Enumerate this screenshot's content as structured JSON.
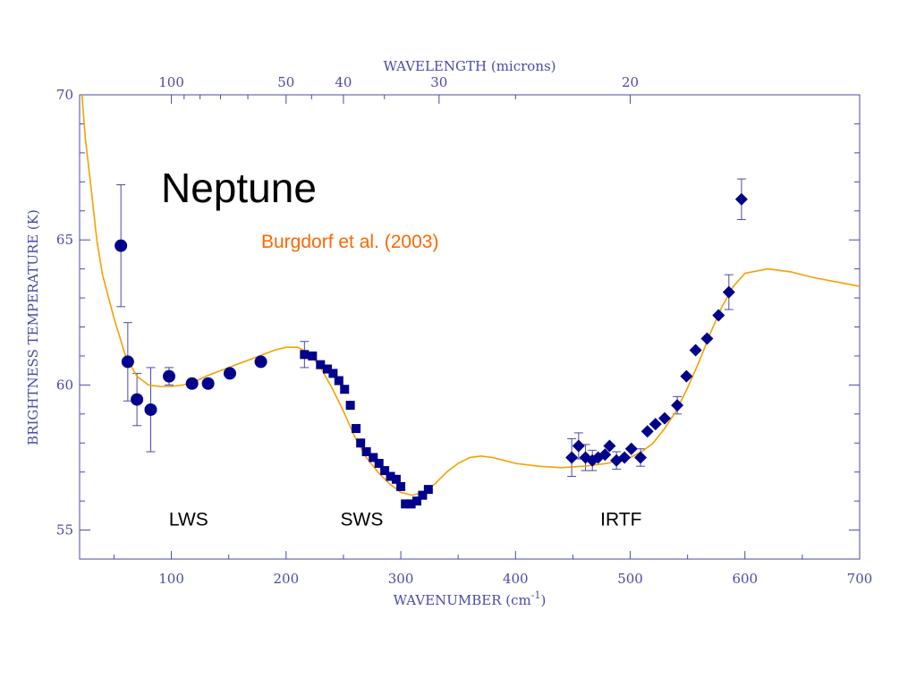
{
  "chart_data": {
    "type": "scatter",
    "title": "Neptune",
    "xlabel": "WAVENUMBER (cm",
    "xlabel_sup": "-1",
    "xlabel_tail": ")",
    "ylabel": "BRIGHTNESS TEMPERATURE (K)",
    "top_xlabel": "WAVELENGTH (microns)",
    "xlim": [
      20,
      700
    ],
    "ylim": [
      54,
      70
    ],
    "x_ticks": [
      100,
      200,
      300,
      400,
      500,
      600,
      700
    ],
    "y_ticks": [
      55,
      60,
      65,
      70
    ],
    "top_ticks": [
      {
        "label": "100",
        "wavelength": 100
      },
      {
        "label": "50",
        "wavelength": 50
      },
      {
        "label": "40",
        "wavelength": 40
      },
      {
        "label": "30",
        "wavelength": 30
      },
      {
        "label": "20",
        "wavelength": 20
      }
    ],
    "colors": {
      "axis": "#4a4aa8",
      "points": "#00008b",
      "model": "#f5a000",
      "model_label": "#ff6600",
      "text": "#000000"
    },
    "model": {
      "name": "Burgdorf et al. (2003)",
      "x": [
        22,
        25,
        30,
        35,
        40,
        50,
        60,
        70,
        80,
        90,
        100,
        110,
        120,
        130,
        140,
        150,
        160,
        170,
        180,
        190,
        200,
        210,
        220,
        230,
        240,
        250,
        260,
        270,
        280,
        290,
        300,
        310,
        320,
        330,
        340,
        350,
        360,
        370,
        380,
        390,
        400,
        420,
        440,
        460,
        480,
        500,
        510,
        520,
        530,
        540,
        550,
        560,
        570,
        580,
        590,
        600,
        620,
        640,
        660,
        680,
        700
      ],
      "y": [
        70.0,
        68.5,
        66.8,
        65.0,
        63.8,
        62.3,
        61.0,
        60.3,
        60.0,
        59.95,
        59.95,
        60.0,
        60.1,
        60.3,
        60.45,
        60.6,
        60.75,
        60.9,
        61.05,
        61.2,
        61.3,
        61.3,
        61.1,
        60.6,
        59.9,
        59.1,
        58.2,
        57.5,
        57.0,
        56.6,
        56.3,
        56.2,
        56.3,
        56.6,
        57.0,
        57.3,
        57.5,
        57.55,
        57.5,
        57.4,
        57.3,
        57.2,
        57.15,
        57.2,
        57.3,
        57.5,
        57.7,
        58.0,
        58.5,
        59.1,
        59.9,
        60.8,
        61.8,
        62.7,
        63.4,
        63.85,
        64.0,
        63.9,
        63.7,
        63.55,
        63.4
      ]
    },
    "series": [
      {
        "name": "LWS",
        "marker": "circle",
        "points": [
          {
            "x": 56,
            "y": 64.8,
            "err": 2.1
          },
          {
            "x": 62,
            "y": 60.8,
            "err": 1.35
          },
          {
            "x": 70,
            "y": 59.5,
            "err": 0.9
          },
          {
            "x": 82,
            "y": 59.15,
            "err": 1.45
          },
          {
            "x": 98,
            "y": 60.3,
            "err": 0.3
          },
          {
            "x": 118,
            "y": 60.05,
            "err": 0
          },
          {
            "x": 132,
            "y": 60.05,
            "err": 0
          },
          {
            "x": 151,
            "y": 60.4,
            "err": 0
          },
          {
            "x": 178,
            "y": 60.8,
            "err": 0
          }
        ]
      },
      {
        "name": "SWS",
        "marker": "square",
        "points": [
          {
            "x": 216,
            "y": 61.05,
            "err": 0.45
          },
          {
            "x": 223,
            "y": 61.0,
            "err": 0
          },
          {
            "x": 230,
            "y": 60.7,
            "err": 0
          },
          {
            "x": 236,
            "y": 60.55,
            "err": 0
          },
          {
            "x": 241,
            "y": 60.4,
            "err": 0
          },
          {
            "x": 246,
            "y": 60.15,
            "err": 0
          },
          {
            "x": 251,
            "y": 59.85,
            "err": 0
          },
          {
            "x": 256,
            "y": 59.3,
            "err": 0
          },
          {
            "x": 261,
            "y": 58.5,
            "err": 0
          },
          {
            "x": 265,
            "y": 58.0,
            "err": 0
          },
          {
            "x": 270,
            "y": 57.7,
            "err": 0
          },
          {
            "x": 276,
            "y": 57.5,
            "err": 0
          },
          {
            "x": 281,
            "y": 57.3,
            "err": 0
          },
          {
            "x": 286,
            "y": 57.05,
            "err": 0
          },
          {
            "x": 291,
            "y": 56.85,
            "err": 0
          },
          {
            "x": 296,
            "y": 56.75,
            "err": 0
          },
          {
            "x": 300,
            "y": 56.5,
            "err": 0
          },
          {
            "x": 304,
            "y": 55.9,
            "err": 0
          },
          {
            "x": 309,
            "y": 55.9,
            "err": 0
          },
          {
            "x": 314,
            "y": 56.0,
            "err": 0
          },
          {
            "x": 319,
            "y": 56.2,
            "err": 0
          },
          {
            "x": 324,
            "y": 56.4,
            "err": 0
          }
        ]
      },
      {
        "name": "IRTF",
        "marker": "diamond",
        "points": [
          {
            "x": 449,
            "y": 57.5,
            "err": 0.65
          },
          {
            "x": 455,
            "y": 57.9,
            "err": 0.45
          },
          {
            "x": 461,
            "y": 57.5,
            "err": 0.45
          },
          {
            "x": 467,
            "y": 57.4,
            "err": 0.35
          },
          {
            "x": 472,
            "y": 57.5,
            "err": 0
          },
          {
            "x": 478,
            "y": 57.6,
            "err": 0
          },
          {
            "x": 482,
            "y": 57.9,
            "err": 0
          },
          {
            "x": 488,
            "y": 57.4,
            "err": 0.3
          },
          {
            "x": 495,
            "y": 57.5,
            "err": 0
          },
          {
            "x": 501,
            "y": 57.8,
            "err": 0
          },
          {
            "x": 509,
            "y": 57.5,
            "err": 0.3
          },
          {
            "x": 515,
            "y": 58.4,
            "err": 0
          },
          {
            "x": 522,
            "y": 58.65,
            "err": 0
          },
          {
            "x": 530,
            "y": 58.85,
            "err": 0
          },
          {
            "x": 541,
            "y": 59.3,
            "err": 0.3
          },
          {
            "x": 549,
            "y": 60.3,
            "err": 0
          },
          {
            "x": 557,
            "y": 61.2,
            "err": 0
          },
          {
            "x": 567,
            "y": 61.6,
            "err": 0
          },
          {
            "x": 577,
            "y": 62.4,
            "err": 0
          },
          {
            "x": 586,
            "y": 63.2,
            "err": 0.6
          },
          {
            "x": 597,
            "y": 66.4,
            "err": 0.7
          }
        ]
      }
    ],
    "annotations": [
      {
        "text": "LWS",
        "x": 115,
        "y": 55.4
      },
      {
        "text": "SWS",
        "x": 266,
        "y": 55.4
      },
      {
        "text": "IRTF",
        "x": 492,
        "y": 55.4
      }
    ]
  }
}
